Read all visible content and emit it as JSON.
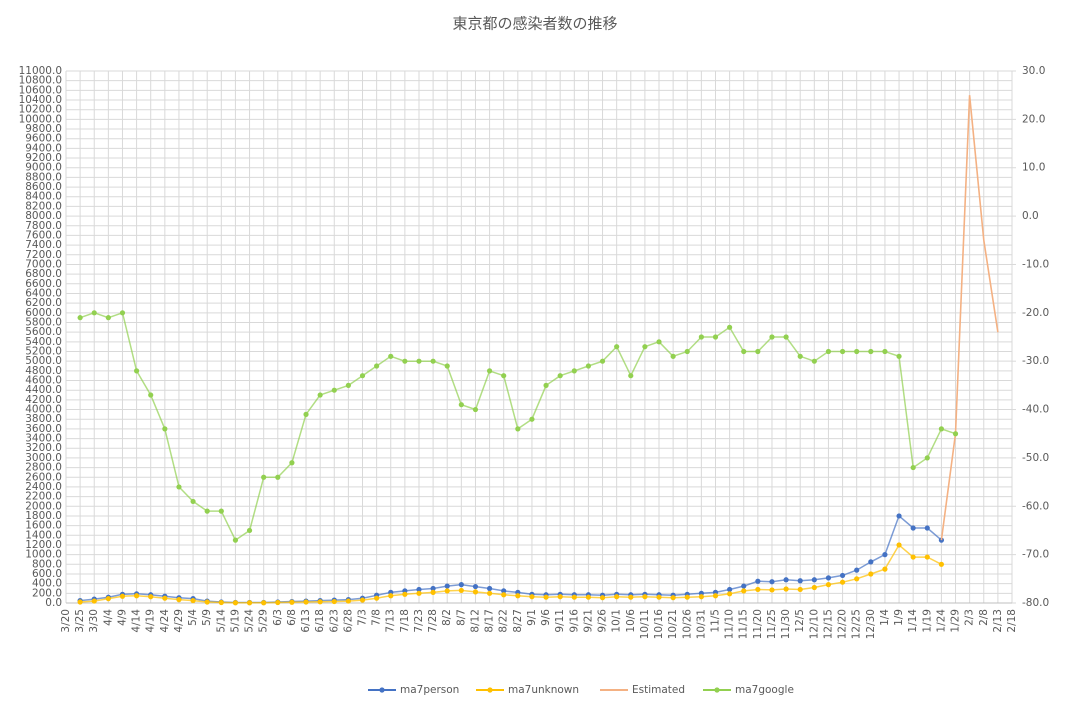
{
  "chart_data": {
    "type": "line",
    "title": "東京都の感染者数の推移",
    "categories": [
      "3/20",
      "3/25",
      "3/30",
      "4/4",
      "4/9",
      "4/14",
      "4/19",
      "4/24",
      "4/29",
      "5/4",
      "5/9",
      "5/14",
      "5/19",
      "5/24",
      "5/29",
      "6/3",
      "6/8",
      "6/13",
      "6/18",
      "6/23",
      "6/28",
      "7/3",
      "7/8",
      "7/13",
      "7/18",
      "7/23",
      "7/28",
      "8/2",
      "8/7",
      "8/12",
      "8/17",
      "8/22",
      "8/27",
      "9/1",
      "9/6",
      "9/11",
      "9/16",
      "9/21",
      "9/26",
      "10/1",
      "10/6",
      "10/11",
      "10/16",
      "10/21",
      "10/26",
      "10/31",
      "11/5",
      "11/10",
      "11/15",
      "11/20",
      "11/25",
      "11/30",
      "12/5",
      "12/10",
      "12/15",
      "12/20",
      "12/25",
      "12/30",
      "1/4",
      "1/9",
      "1/14",
      "1/19",
      "1/24",
      "1/29",
      "2/3",
      "2/8",
      "2/13",
      "2/18"
    ],
    "series": [
      {
        "name": "ma7person",
        "color": "#4472c4",
        "markers": true,
        "values": [
          null,
          50,
          80,
          120,
          180,
          190,
          170,
          140,
          110,
          90,
          40,
          20,
          10,
          10,
          10,
          20,
          30,
          40,
          50,
          60,
          70,
          100,
          160,
          220,
          250,
          280,
          300,
          350,
          380,
          340,
          300,
          250,
          220,
          180,
          170,
          180,
          170,
          170,
          160,
          180,
          170,
          180,
          170,
          160,
          180,
          200,
          220,
          280,
          350,
          450,
          440,
          480,
          460,
          480,
          520,
          570,
          680,
          850,
          1000,
          1800,
          1550,
          1550,
          1300,
          null,
          null,
          null,
          null,
          null
        ]
      },
      {
        "name": "ma7unknown",
        "color": "#ffc000",
        "markers": true,
        "values": [
          null,
          20,
          40,
          90,
          140,
          150,
          130,
          100,
          70,
          50,
          20,
          10,
          5,
          5,
          5,
          10,
          15,
          20,
          25,
          30,
          40,
          60,
          100,
          150,
          180,
          200,
          220,
          250,
          260,
          230,
          200,
          170,
          150,
          130,
          120,
          130,
          120,
          120,
          110,
          130,
          120,
          130,
          120,
          110,
          120,
          130,
          150,
          190,
          250,
          280,
          270,
          290,
          280,
          320,
          380,
          430,
          500,
          600,
          700,
          1200,
          950,
          950,
          800,
          null,
          null,
          null,
          null,
          null
        ]
      },
      {
        "name": "Estimated",
        "color": "#f4b183",
        "markers": false,
        "values": [
          null,
          null,
          null,
          null,
          null,
          null,
          null,
          null,
          null,
          null,
          null,
          null,
          null,
          null,
          null,
          null,
          null,
          null,
          null,
          null,
          null,
          null,
          null,
          null,
          null,
          null,
          null,
          null,
          null,
          null,
          null,
          null,
          null,
          null,
          null,
          null,
          null,
          null,
          null,
          null,
          null,
          null,
          null,
          null,
          null,
          null,
          null,
          null,
          null,
          null,
          null,
          null,
          null,
          null,
          null,
          null,
          null,
          null,
          null,
          null,
          null,
          null,
          1300,
          3500,
          10500,
          7500,
          5600,
          null
        ]
      },
      {
        "name": "ma7google",
        "color": "#92d050",
        "markers": true,
        "axis": "y2",
        "values": [
          null,
          -21,
          -20,
          -21,
          -20,
          -32,
          -37,
          -44,
          -56,
          -59,
          -61,
          -61,
          -67,
          -65,
          -54,
          -54,
          -51,
          -41,
          -37,
          -36,
          -35,
          -33,
          -31,
          -29,
          -30,
          -30,
          -30,
          -31,
          -39,
          -40,
          -32,
          -33,
          -44,
          -42,
          -35,
          -33,
          -32,
          -31,
          -30,
          -27,
          -33,
          -27,
          -26,
          -29,
          -28,
          -25,
          -25,
          -23,
          -28,
          -28,
          -25,
          -25,
          -29,
          -30,
          -28,
          -28,
          -28,
          -28,
          -28,
          -29,
          -52,
          -50,
          -44,
          -45,
          null,
          null,
          null,
          null
        ]
      }
    ],
    "ylim": [
      0,
      11000
    ],
    "yticks": [
      {
        "value": 0,
        "label": "0.0"
      },
      {
        "value": 200,
        "label": "200.0"
      },
      {
        "value": 400,
        "label": "400.0"
      },
      {
        "value": 600,
        "label": "600.0"
      },
      {
        "value": 800,
        "label": "800.0"
      },
      {
        "value": 1000,
        "label": "1000.0"
      },
      {
        "value": 1200,
        "label": "1200.0"
      },
      {
        "value": 1400,
        "label": "1400.0"
      },
      {
        "value": 1600,
        "label": "1600.0"
      },
      {
        "value": 1800,
        "label": "1800.0"
      },
      {
        "value": 2000,
        "label": "2000.0"
      },
      {
        "value": 2200,
        "label": "2200.0"
      },
      {
        "value": 2400,
        "label": "2400.0"
      },
      {
        "value": 2600,
        "label": "2600.0"
      },
      {
        "value": 2800,
        "label": "2800.0"
      },
      {
        "value": 3000,
        "label": "3000.0"
      },
      {
        "value": 3200,
        "label": "3200.0"
      },
      {
        "value": 3400,
        "label": "3400.0"
      },
      {
        "value": 3600,
        "label": "3600.0"
      },
      {
        "value": 3800,
        "label": "3800.0"
      },
      {
        "value": 4000,
        "label": "4000.0"
      },
      {
        "value": 4200,
        "label": "4200.0"
      },
      {
        "value": 4400,
        "label": "4400.0"
      },
      {
        "value": 4600,
        "label": "4600.0"
      },
      {
        "value": 4800,
        "label": "4800.0"
      },
      {
        "value": 5000,
        "label": "5000.0"
      },
      {
        "value": 5200,
        "label": "5200.0"
      },
      {
        "value": 5400,
        "label": "5400.0"
      },
      {
        "value": 5600,
        "label": "5600.0"
      },
      {
        "value": 5800,
        "label": "5800.0"
      },
      {
        "value": 6000,
        "label": "6000.0"
      },
      {
        "value": 6200,
        "label": "6200.0"
      },
      {
        "value": 6400,
        "label": "6400.0"
      },
      {
        "value": 6600,
        "label": "6600.0"
      },
      {
        "value": 6800,
        "label": "6800.0"
      },
      {
        "value": 7000,
        "label": "7000.0"
      },
      {
        "value": 7200,
        "label": "7200.0"
      },
      {
        "value": 7400,
        "label": "7400.0"
      },
      {
        "value": 7600,
        "label": "7600.0"
      },
      {
        "value": 7800,
        "label": "7800.0"
      },
      {
        "value": 8000,
        "label": "8000.0"
      },
      {
        "value": 8200,
        "label": "8200.0"
      },
      {
        "value": 8400,
        "label": "8400.0"
      },
      {
        "value": 8600,
        "label": "8600.0"
      },
      {
        "value": 8800,
        "label": "8800.0"
      },
      {
        "value": 9000,
        "label": "9000.0"
      },
      {
        "value": 9200,
        "label": "9200.0"
      },
      {
        "value": 9400,
        "label": "9400.0"
      },
      {
        "value": 9600,
        "label": "9600.0"
      },
      {
        "value": 9800,
        "label": "9800.0"
      },
      {
        "value": 10000,
        "label": "10000.0"
      },
      {
        "value": 10200,
        "label": "10200.0"
      },
      {
        "value": 10400,
        "label": "10400.0"
      },
      {
        "value": 10600,
        "label": "10600.0"
      },
      {
        "value": 10800,
        "label": "10800.0"
      },
      {
        "value": 11000,
        "label": "11000.0"
      }
    ],
    "y2lim": [
      -80,
      30
    ],
    "y2ticks": [
      {
        "value": -80,
        "label": "-80.0"
      },
      {
        "value": -70,
        "label": "-70.0"
      },
      {
        "value": -60,
        "label": "-60.0"
      },
      {
        "value": -50,
        "label": "-50.0"
      },
      {
        "value": -40,
        "label": "-40.0"
      },
      {
        "value": -30,
        "label": "-30.0"
      },
      {
        "value": -20,
        "label": "-20.0"
      },
      {
        "value": -10,
        "label": "-10.0"
      },
      {
        "value": 0,
        "label": "0.0"
      },
      {
        "value": 10,
        "label": "10.0"
      },
      {
        "value": 20,
        "label": "20.0"
      },
      {
        "value": 30,
        "label": "30.0"
      }
    ],
    "grid": true,
    "legend_position": "bottom"
  }
}
